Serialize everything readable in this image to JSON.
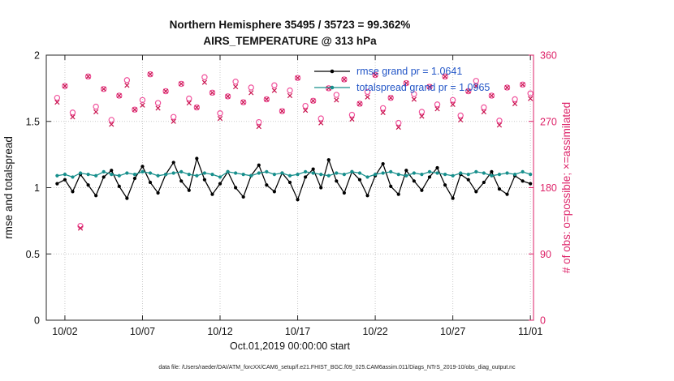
{
  "footer": "data file: /Users/raeder/DAI/ATM_forcXX/CAM6_setup/f.e21.FHIST_BGC.f09_025.CAM6assim.011/Diags_NTrS_2019-10/obs_diag_output.nc",
  "colors": {
    "rmse": "#000000",
    "totalspread": "#178f8c",
    "possible": "#f0509b",
    "assimilated": "#c9134f",
    "right_axis": "#dd2268",
    "legend_text": "#2356c7",
    "grid": "#c9c9c9",
    "axis": "#262626"
  },
  "chart_data": {
    "type": "line",
    "title_line1": "Northern Hemisphere 35495 / 35723 = 99.362%",
    "title_line2": "AIRS_TEMPERATURE @ 313 hPa",
    "x_label": "Oct.01,2019 00:00:00 start",
    "y_label_left": "rmse and totalspread",
    "y_label_right": "# of obs: o=possible; ×=assimilated",
    "grid": true,
    "legend_position": "inside-top-center",
    "xlim_days": [
      -0.2,
      31.2
    ],
    "x_ticks": [
      {
        "day": 1,
        "label": "10/02"
      },
      {
        "day": 6,
        "label": "10/07"
      },
      {
        "day": 11,
        "label": "10/12"
      },
      {
        "day": 16,
        "label": "10/17"
      },
      {
        "day": 21,
        "label": "10/22"
      },
      {
        "day": 26,
        "label": "10/27"
      },
      {
        "day": 31,
        "label": "11/01"
      }
    ],
    "left_axis": {
      "lim": [
        0,
        2
      ],
      "tick_values": [
        0,
        0.5,
        1,
        1.5,
        2
      ],
      "tick_labels": [
        "0",
        "0.5",
        "1",
        "1.5",
        "2"
      ]
    },
    "right_axis": {
      "lim": [
        0,
        360
      ],
      "tick_values": [
        0,
        90,
        180,
        270,
        360
      ],
      "tick_labels": [
        "0",
        "90",
        "180",
        "270",
        "360"
      ]
    },
    "legend": [
      {
        "label": "rmse grand pr = 1.0641",
        "series": "rmse"
      },
      {
        "label": "totalspread grand pr = 1.0965",
        "series": "totalspread"
      }
    ],
    "x_days": [
      0.5,
      1,
      1.5,
      2,
      2.5,
      3,
      3.5,
      4,
      4.5,
      5,
      5.5,
      6,
      6.5,
      7,
      7.5,
      8,
      8.5,
      9,
      9.5,
      10,
      10.5,
      11,
      11.5,
      12,
      12.5,
      13,
      13.5,
      14,
      14.5,
      15,
      15.5,
      16,
      16.5,
      17,
      17.5,
      18,
      18.5,
      19,
      19.5,
      20,
      20.5,
      21,
      21.5,
      22,
      22.5,
      23,
      23.5,
      24,
      24.5,
      25,
      25.5,
      26,
      26.5,
      27,
      27.5,
      28,
      28.5,
      29,
      29.5,
      30,
      30.5,
      31
    ],
    "series": [
      {
        "name": "possible",
        "axis": "right",
        "marker": "o",
        "line": false,
        "color": "#f0509b",
        "values": [
          302,
          318,
          282,
          128,
          331,
          290,
          314,
          272,
          305,
          326,
          286,
          299,
          334,
          295,
          311,
          276,
          321,
          301,
          289,
          330,
          309,
          281,
          304,
          324,
          296,
          316,
          269,
          300,
          319,
          284,
          312,
          329,
          291,
          298,
          274,
          315,
          306,
          327,
          279,
          294,
          310,
          333,
          288,
          302,
          268,
          322,
          307,
          283,
          317,
          293,
          331,
          299,
          278,
          311,
          325,
          289,
          305,
          271,
          316,
          300,
          320,
          308
        ]
      },
      {
        "name": "assimilated",
        "axis": "right",
        "marker": "x",
        "line": false,
        "color": "#c9134f",
        "values": [
          296,
          318,
          276,
          125,
          331,
          283,
          314,
          266,
          305,
          319,
          286,
          292,
          334,
          288,
          311,
          270,
          321,
          295,
          289,
          323,
          309,
          274,
          304,
          317,
          296,
          309,
          263,
          300,
          312,
          284,
          305,
          329,
          285,
          298,
          268,
          315,
          299,
          327,
          273,
          294,
          303,
          333,
          282,
          302,
          262,
          322,
          300,
          277,
          317,
          287,
          331,
          293,
          272,
          311,
          318,
          283,
          305,
          265,
          316,
          294,
          320,
          301
        ]
      },
      {
        "name": "rmse",
        "axis": "left",
        "marker": "dot",
        "line": true,
        "color": "#000000",
        "values": [
          1.03,
          1.06,
          0.97,
          1.1,
          1.02,
          0.94,
          1.08,
          1.13,
          1.01,
          0.92,
          1.07,
          1.16,
          1.04,
          0.96,
          1.1,
          1.19,
          1.05,
          0.98,
          1.22,
          1.06,
          0.95,
          1.03,
          1.12,
          1.0,
          0.93,
          1.09,
          1.17,
          1.02,
          0.97,
          1.11,
          1.04,
          0.91,
          1.08,
          1.14,
          1.0,
          1.21,
          1.05,
          0.96,
          1.12,
          1.06,
          0.94,
          1.09,
          1.18,
          1.01,
          0.95,
          1.13,
          1.05,
          0.98,
          1.08,
          1.15,
          1.02,
          0.92,
          1.1,
          1.06,
          0.97,
          1.04,
          1.12,
          0.99,
          0.95,
          1.09,
          1.05,
          1.03
        ]
      },
      {
        "name": "totalspread",
        "axis": "left",
        "marker": "dot",
        "line": true,
        "color": "#178f8c",
        "values": [
          1.09,
          1.1,
          1.08,
          1.11,
          1.1,
          1.09,
          1.12,
          1.1,
          1.09,
          1.11,
          1.1,
          1.12,
          1.11,
          1.09,
          1.1,
          1.11,
          1.12,
          1.1,
          1.09,
          1.11,
          1.1,
          1.08,
          1.12,
          1.11,
          1.1,
          1.09,
          1.11,
          1.12,
          1.1,
          1.11,
          1.09,
          1.1,
          1.12,
          1.11,
          1.1,
          1.09,
          1.11,
          1.1,
          1.12,
          1.11,
          1.08,
          1.1,
          1.11,
          1.12,
          1.1,
          1.09,
          1.11,
          1.1,
          1.12,
          1.11,
          1.1,
          1.09,
          1.11,
          1.1,
          1.12,
          1.11,
          1.09,
          1.1,
          1.11,
          1.1,
          1.12,
          1.1
        ]
      }
    ]
  }
}
